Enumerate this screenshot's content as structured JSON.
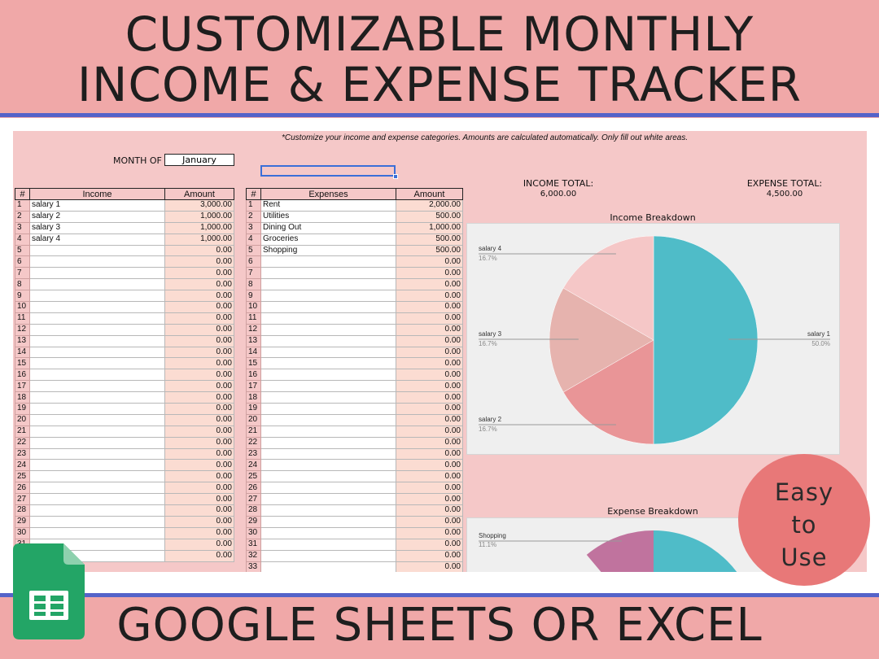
{
  "banner": {
    "title_line1": "CUSTOMIZABLE MONTHLY",
    "title_line2": "INCOME & EXPENSE TRACKER",
    "bottom_title": "GOOGLE SHEETS OR EXCEL"
  },
  "badge": {
    "line1": "Easy",
    "line2": "to",
    "line3": "Use"
  },
  "sheet": {
    "note": "*Customize your income and expense categories. Amounts are calculated automatically. Only fill out white areas.",
    "month_label": "MONTH OF",
    "month_value": "January",
    "income_table": {
      "headers": [
        "#",
        "Income",
        "Amount"
      ],
      "named_rows": [
        {
          "n": "1",
          "name": "salary 1",
          "amount": "3,000.00"
        },
        {
          "n": "2",
          "name": "salary 2",
          "amount": "1,000.00"
        },
        {
          "n": "3",
          "name": "salary 3",
          "amount": "1,000.00"
        },
        {
          "n": "4",
          "name": "salary 4",
          "amount": "1,000.00"
        }
      ],
      "empty_start": 5,
      "empty_end": 32,
      "empty_amount": "0.00"
    },
    "expense_table": {
      "headers": [
        "#",
        "Expenses",
        "Amount"
      ],
      "named_rows": [
        {
          "n": "1",
          "name": "Rent",
          "amount": "2,000.00"
        },
        {
          "n": "2",
          "name": "Utilities",
          "amount": "500.00"
        },
        {
          "n": "3",
          "name": "Dining Out",
          "amount": "1,000.00"
        },
        {
          "n": "4",
          "name": "Groceries",
          "amount": "500.00"
        },
        {
          "n": "5",
          "name": "Shopping",
          "amount": "500.00"
        }
      ],
      "empty_start": 6,
      "empty_end": 33,
      "empty_amount": "0.00"
    },
    "income_total_label": "INCOME TOTAL:",
    "income_total_value": "6,000.00",
    "expense_total_label": "EXPENSE TOTAL:",
    "expense_total_value": "4,500.00"
  },
  "chart_data": [
    {
      "type": "pie",
      "title": "Income Breakdown",
      "categories": [
        "salary 1",
        "salary 2",
        "salary 3",
        "salary 4"
      ],
      "values": [
        3000,
        1000,
        1000,
        1000
      ],
      "percent_labels": [
        "50.0%",
        "16.7%",
        "16.7%",
        "16.7%"
      ],
      "colors": [
        "#4fbcc8",
        "#e99597",
        "#e6b3ae",
        "#f5c7c7"
      ]
    },
    {
      "type": "pie",
      "title": "Expense Breakdown",
      "visible_categories": [
        "Shopping"
      ],
      "visible_percent_labels": [
        "11.1%"
      ],
      "colors": [
        "#4fbcc8",
        "#c0739e"
      ]
    }
  ]
}
